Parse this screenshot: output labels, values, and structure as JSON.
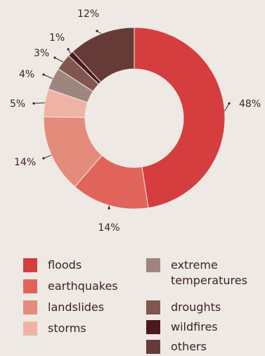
{
  "chart_data": {
    "type": "pie",
    "donut": true,
    "categories": [
      "floods",
      "earthquakes",
      "landslides",
      "storms",
      "extreme temperatures",
      "droughts",
      "wildfires",
      "others"
    ],
    "values": [
      48,
      14,
      14,
      5,
      4,
      3,
      1,
      12
    ],
    "value_labels": [
      "48%",
      "14%",
      "14%",
      "5%",
      "4%",
      "3%",
      "1%",
      "12%"
    ],
    "colors": [
      "#d63d3f",
      "#e0645a",
      "#e48b7b",
      "#eeb3a5",
      "#9e8580",
      "#80564f",
      "#4c1a1d",
      "#663b37"
    ],
    "legend_position": "bottom"
  }
}
